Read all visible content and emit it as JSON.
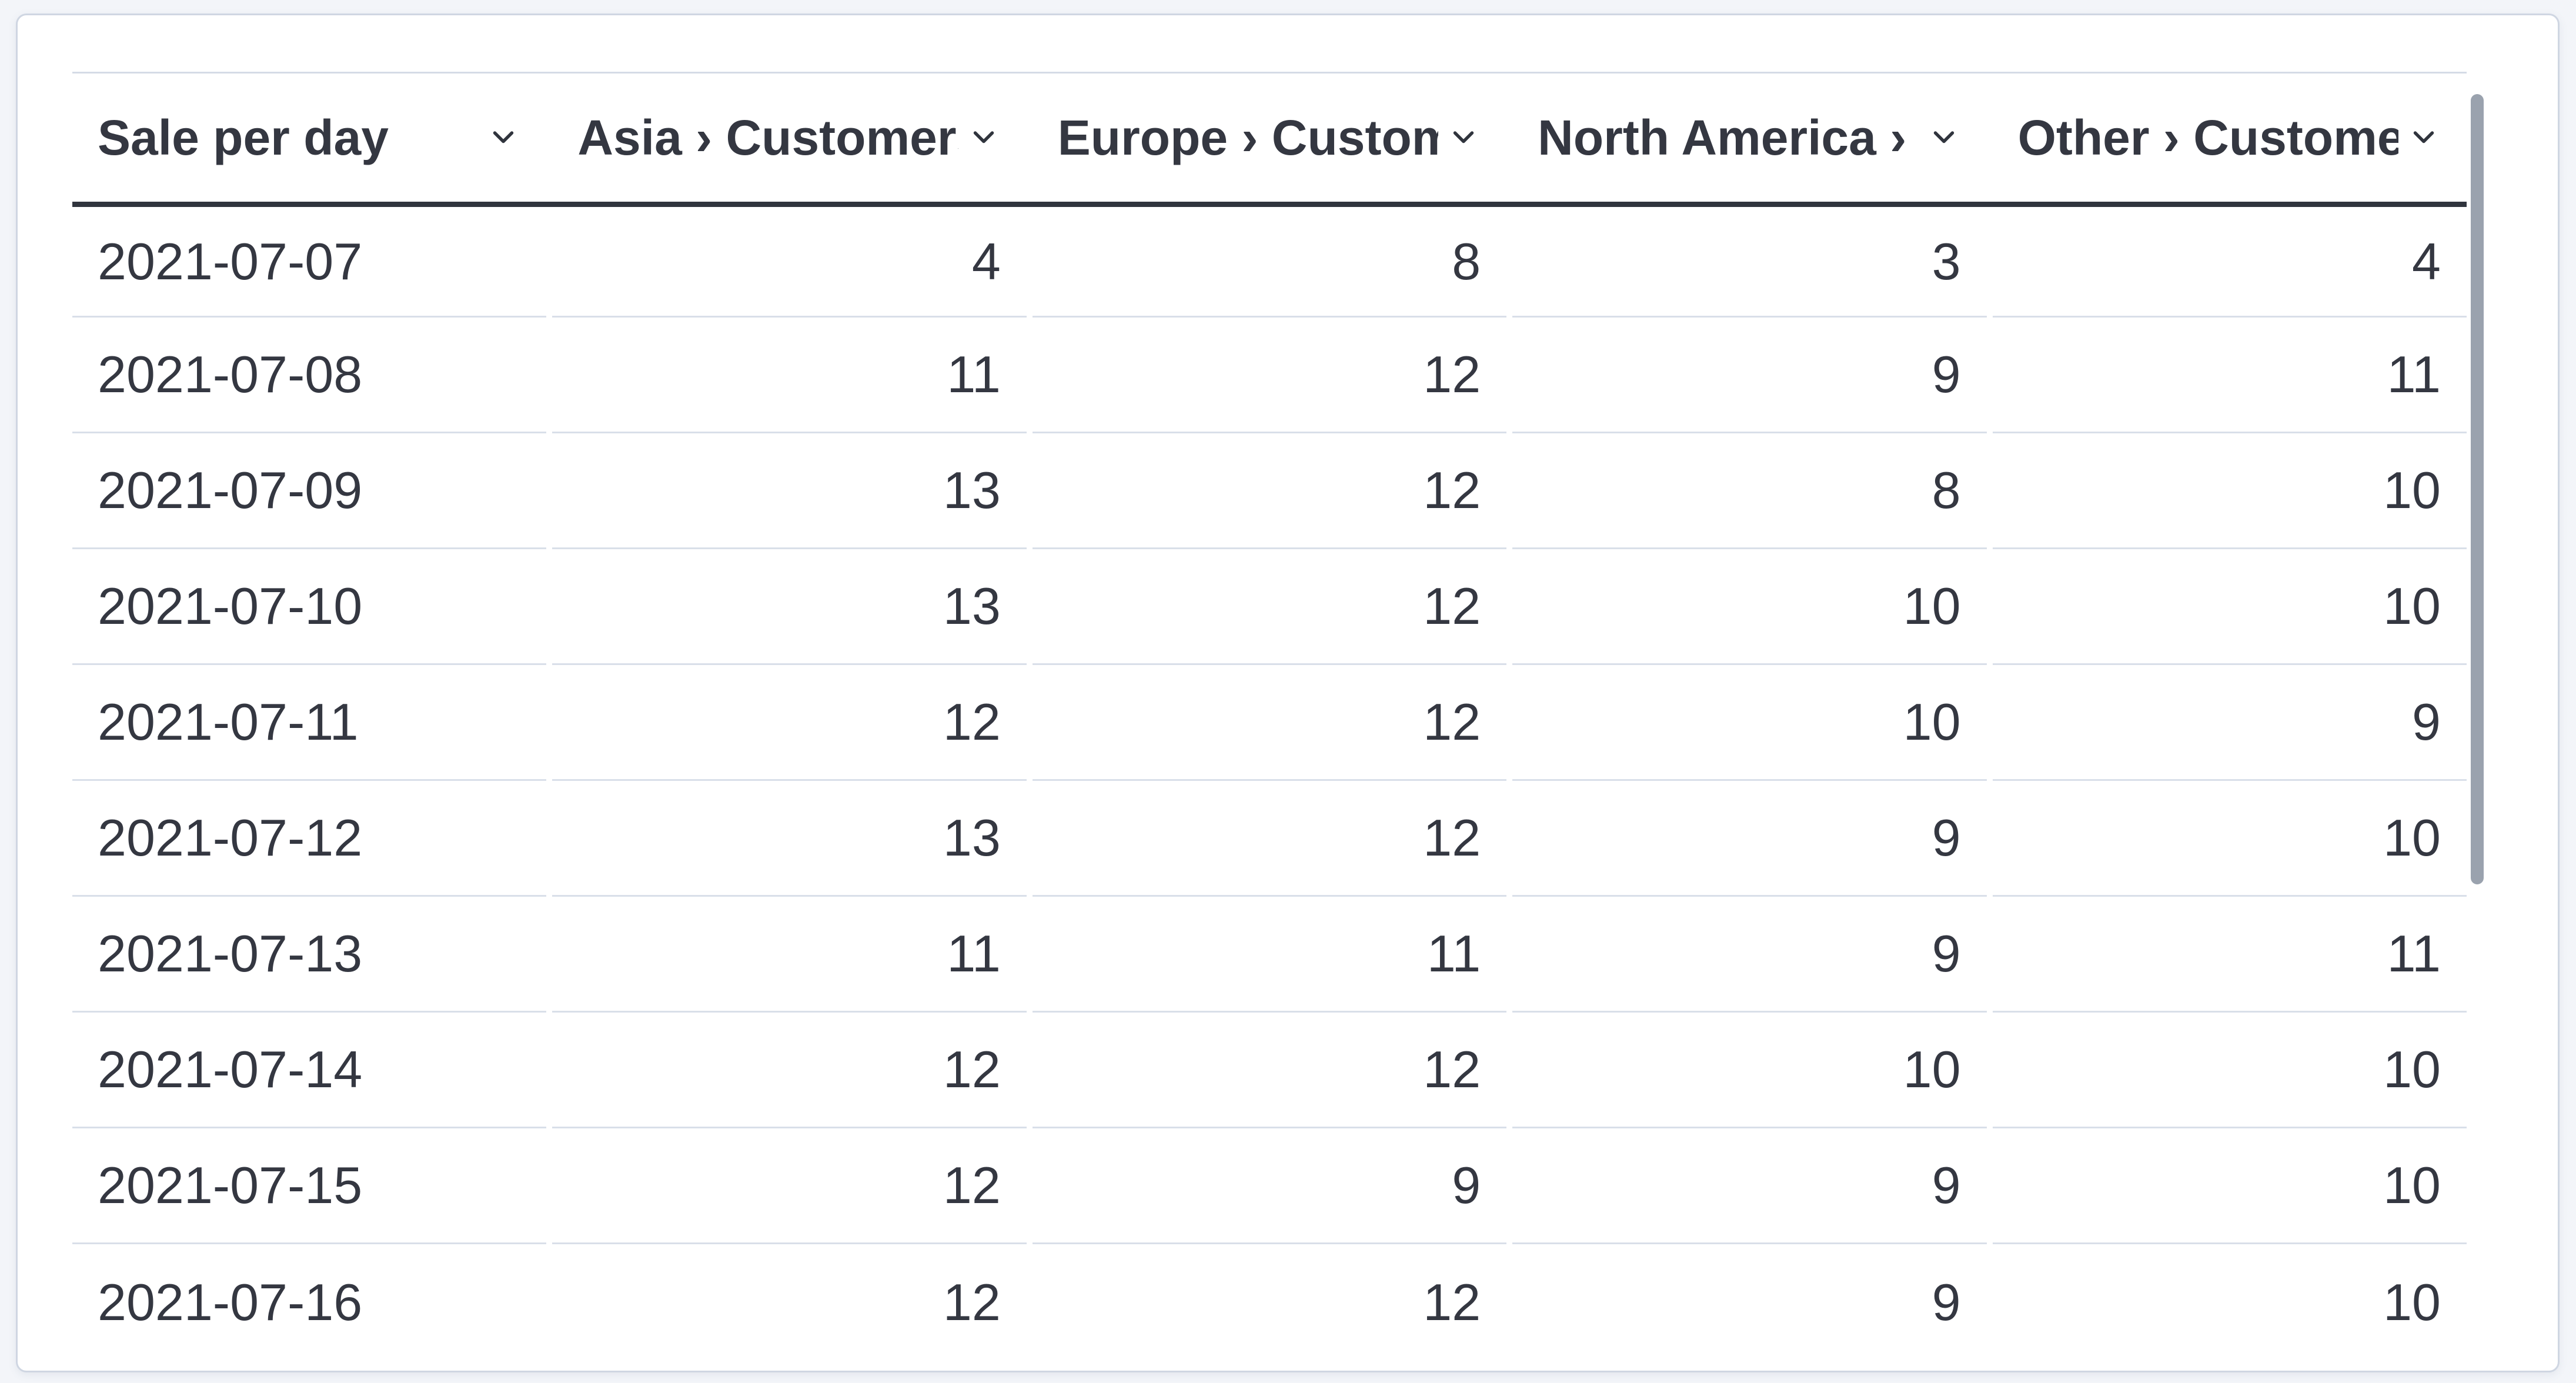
{
  "panel": {
    "kind": "data-table-visualization"
  },
  "table": {
    "columns": [
      {
        "label": "Sale per day",
        "align": "left",
        "sort_icon": "chevron-down-icon"
      },
      {
        "label": "Asia › Customers",
        "align": "left",
        "sort_icon": "chevron-down-icon"
      },
      {
        "label": "Europe › Customers",
        "align": "left",
        "sort_icon": "chevron-down-icon"
      },
      {
        "label": "North America › Customers",
        "align": "left",
        "sort_icon": "chevron-down-icon"
      },
      {
        "label": "Other › Customers",
        "align": "left",
        "sort_icon": "chevron-down-icon"
      }
    ],
    "rows": [
      [
        "2021-07-07",
        "4",
        "8",
        "3",
        "4"
      ],
      [
        "2021-07-08",
        "11",
        "12",
        "9",
        "11"
      ],
      [
        "2021-07-09",
        "13",
        "12",
        "8",
        "10"
      ],
      [
        "2021-07-10",
        "13",
        "12",
        "10",
        "10"
      ],
      [
        "2021-07-11",
        "12",
        "12",
        "10",
        "9"
      ],
      [
        "2021-07-12",
        "13",
        "12",
        "9",
        "10"
      ],
      [
        "2021-07-13",
        "11",
        "11",
        "9",
        "11"
      ],
      [
        "2021-07-14",
        "12",
        "12",
        "10",
        "10"
      ],
      [
        "2021-07-15",
        "12",
        "9",
        "9",
        "10"
      ],
      [
        "2021-07-16",
        "12",
        "12",
        "9",
        "10"
      ]
    ]
  },
  "scrollbar": {
    "orientation": "vertical",
    "visible": true
  },
  "colors": {
    "text": "#343741",
    "header_text": "#30343d",
    "header_underline": "#30343d",
    "row_border": "#d5dbe6",
    "row_border_light": "#d9dfe9",
    "card_border": "#cfd6e2",
    "card_bg": "#ffffff",
    "page_bg": "#f3f5f9",
    "scrollbar": "#9aa2ae"
  }
}
